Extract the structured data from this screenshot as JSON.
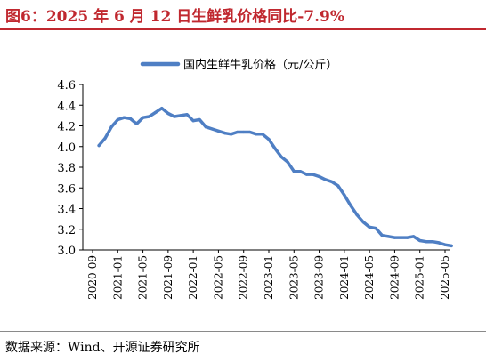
{
  "figure": {
    "label": "图6：",
    "title": "2025 年 6 月 12 日生鲜乳价格同比-7.9%"
  },
  "source": "数据来源：Wind、开源证券研究所",
  "colors": {
    "line": "#4f7fc4",
    "accent": "#c0282f",
    "axis": "#000000"
  },
  "chart_data": {
    "type": "line",
    "title": "",
    "xlabel": "",
    "ylabel": "",
    "ylim": [
      3.0,
      4.6
    ],
    "yticks": [
      "3.0",
      "3.2",
      "3.4",
      "3.6",
      "3.8",
      "4.0",
      "4.2",
      "4.4",
      "4.6"
    ],
    "xticks": [
      "2020-09",
      "2021-01",
      "2021-05",
      "2021-09",
      "2022-01",
      "2022-05",
      "2022-09",
      "2023-01",
      "2023-05",
      "2023-09",
      "2024-01",
      "2024-05",
      "2024-09",
      "2025-01",
      "2025-05"
    ],
    "grid": false,
    "legend_position": "top",
    "series": [
      {
        "name": "国内生鲜牛乳价格（元/公斤）",
        "x": [
          "2020-10",
          "2020-11",
          "2020-12",
          "2021-01",
          "2021-02",
          "2021-03",
          "2021-04",
          "2021-05",
          "2021-06",
          "2021-07",
          "2021-08",
          "2021-09",
          "2021-10",
          "2021-11",
          "2021-12",
          "2022-01",
          "2022-02",
          "2022-03",
          "2022-04",
          "2022-05",
          "2022-06",
          "2022-07",
          "2022-08",
          "2022-09",
          "2022-10",
          "2022-11",
          "2022-12",
          "2023-01",
          "2023-02",
          "2023-03",
          "2023-04",
          "2023-05",
          "2023-06",
          "2023-07",
          "2023-08",
          "2023-09",
          "2023-10",
          "2023-11",
          "2023-12",
          "2024-01",
          "2024-02",
          "2024-03",
          "2024-04",
          "2024-05",
          "2024-06",
          "2024-07",
          "2024-08",
          "2024-09",
          "2024-10",
          "2024-11",
          "2024-12",
          "2025-01",
          "2025-02",
          "2025-03",
          "2025-04",
          "2025-05",
          "2025-06"
        ],
        "values": [
          4.01,
          4.08,
          4.19,
          4.26,
          4.28,
          4.27,
          4.22,
          4.28,
          4.29,
          4.33,
          4.37,
          4.32,
          4.29,
          4.3,
          4.31,
          4.25,
          4.26,
          4.19,
          4.17,
          4.15,
          4.13,
          4.12,
          4.14,
          4.14,
          4.14,
          4.12,
          4.12,
          4.07,
          3.98,
          3.9,
          3.85,
          3.76,
          3.76,
          3.73,
          3.73,
          3.71,
          3.68,
          3.66,
          3.62,
          3.53,
          3.43,
          3.34,
          3.27,
          3.22,
          3.21,
          3.14,
          3.13,
          3.12,
          3.12,
          3.12,
          3.13,
          3.09,
          3.08,
          3.08,
          3.07,
          3.05,
          3.04
        ]
      }
    ]
  }
}
